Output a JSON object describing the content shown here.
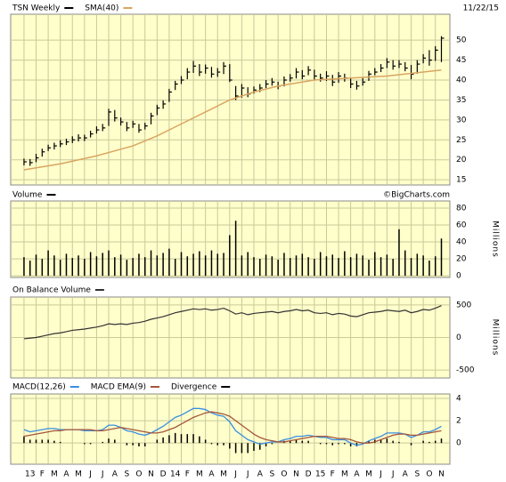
{
  "chart_data": [
    {
      "type": "ohlc",
      "title": "TSN Weekly",
      "date_label": "11/22/15",
      "color": "#000000",
      "grid": true,
      "x": [
        0,
        0.5,
        1,
        1.5,
        2,
        2.5,
        3,
        3.5,
        4,
        4.5,
        5,
        5.5,
        6,
        6.5,
        7,
        7.5,
        8,
        8.5,
        9,
        9.5,
        10,
        10.5,
        11,
        11.5,
        12,
        12.5,
        13,
        13.5,
        14,
        14.5,
        15,
        15.5,
        16,
        16.5,
        17,
        17.5,
        18,
        18.5,
        19,
        19.5,
        20,
        20.5,
        21,
        21.5,
        22,
        22.5,
        23,
        23.5,
        24,
        24.5,
        25,
        25.5,
        26,
        26.5,
        27,
        27.5,
        28,
        28.5,
        29,
        29.5,
        30,
        30.5,
        31,
        31.5,
        32,
        32.5,
        33,
        33.5,
        34,
        34.5
      ],
      "high": [
        20.3,
        20.2,
        21.5,
        22.8,
        23.8,
        24.3,
        24.9,
        25.3,
        25.9,
        26.4,
        26.3,
        27.3,
        28.4,
        29,
        32.8,
        32.5,
        30.6,
        29.5,
        29.8,
        29,
        29.3,
        31.8,
        33.8,
        34.9,
        37.8,
        39.8,
        41,
        43,
        44.8,
        44,
        43.9,
        43.3,
        43,
        44.5,
        44,
        38.5,
        39,
        38.2,
        38.4,
        39,
        40,
        40.5,
        39.6,
        40.9,
        41.5,
        43,
        42.5,
        43.5,
        42.6,
        41.6,
        42.2,
        41.3,
        42,
        41.6,
        40.6,
        39.8,
        40.5,
        42.3,
        43,
        44,
        45.5,
        45,
        45,
        44.5,
        43.8,
        45,
        46.5,
        47.5,
        48.5,
        51
      ],
      "low": [
        18.6,
        18.5,
        19.4,
        20.8,
        22.2,
        22.6,
        23.2,
        23.7,
        24.2,
        24.6,
        24.7,
        25.6,
        26.6,
        27.2,
        28.5,
        29.6,
        28.6,
        27.2,
        28,
        26.8,
        27.6,
        28.9,
        31.2,
        32.8,
        34.5,
        37.5,
        39,
        40.2,
        41.8,
        41,
        41.6,
        40.6,
        40.8,
        41.5,
        39.5,
        35,
        35.6,
        35.7,
        36.6,
        37,
        38,
        38.6,
        37.7,
        38.4,
        39.6,
        40.4,
        40.2,
        41.2,
        40,
        39.6,
        39.8,
        38.5,
        39.3,
        39.6,
        38,
        37.6,
        38.6,
        39.8,
        41.2,
        42,
        43,
        42.6,
        43,
        42.2,
        40.2,
        41.6,
        44.2,
        43.6,
        44.8,
        44.5
      ],
      "close": [
        19.5,
        19.3,
        20.5,
        22,
        23,
        23.5,
        24,
        24.5,
        25,
        25.5,
        25.5,
        26.5,
        27.5,
        28,
        32,
        30.5,
        29.5,
        28,
        29,
        27.5,
        28.5,
        31,
        33,
        34,
        37,
        39,
        40,
        42,
        43.5,
        42,
        43,
        41.5,
        42,
        43.5,
        40,
        36,
        38,
        36.5,
        37.5,
        38,
        39,
        39.5,
        38.5,
        40,
        40.5,
        42,
        41,
        42.5,
        41,
        40.5,
        41,
        39.5,
        41,
        40.5,
        39,
        38.5,
        39.5,
        41.5,
        42,
        43,
        44.5,
        43.5,
        44,
        43,
        41.5,
        44,
        45.5,
        45,
        47.5,
        50.5
      ],
      "sma": {
        "name": "SMA(40)",
        "color": "#d9a560",
        "x": [
          0,
          3,
          6,
          9,
          11,
          13,
          15,
          17,
          19,
          21,
          24,
          27,
          30,
          34.5
        ],
        "values": [
          17.5,
          19,
          21,
          23.5,
          26,
          29,
          32,
          35,
          37,
          38.5,
          40,
          40.5,
          41,
          42.5
        ]
      },
      "xlim": [
        -1.1,
        35.2
      ],
      "ylim": [
        13.7,
        56.5
      ],
      "yticks": [
        15,
        20,
        25,
        30,
        35,
        40,
        45,
        50
      ]
    },
    {
      "type": "bar",
      "title": "Volume",
      "watermark": "©BigCharts.com",
      "y_label": "Millions",
      "color": "#000000",
      "grid": true,
      "x": [
        0,
        0.5,
        1,
        1.5,
        2,
        2.5,
        3,
        3.5,
        4,
        4.5,
        5,
        5.5,
        6,
        6.5,
        7,
        7.5,
        8,
        8.5,
        9,
        9.5,
        10,
        10.5,
        11,
        11.5,
        12,
        12.5,
        13,
        13.5,
        14,
        14.5,
        15,
        15.5,
        16,
        16.5,
        17,
        17.5,
        18,
        18.5,
        19,
        19.5,
        20,
        20.5,
        21,
        21.5,
        22,
        22.5,
        23,
        23.5,
        24,
        24.5,
        25,
        25.5,
        26,
        26.5,
        27,
        27.5,
        28,
        28.5,
        29,
        29.5,
        30,
        30.5,
        31,
        31.5,
        32,
        32.5,
        33,
        33.5,
        34,
        34.5
      ],
      "values": [
        22,
        18,
        25,
        20,
        30,
        24,
        19,
        26,
        21,
        24,
        20,
        28,
        23,
        27,
        30,
        22,
        25,
        19,
        21,
        26,
        22,
        30,
        24,
        27,
        32,
        20,
        28,
        23,
        26,
        29,
        24,
        30,
        26,
        27,
        48,
        65,
        24,
        28,
        22,
        20,
        25,
        23,
        19,
        27,
        21,
        24,
        26,
        22,
        20,
        28,
        23,
        25,
        21,
        29,
        22,
        26,
        24,
        19,
        28,
        22,
        25,
        20,
        55,
        30,
        21,
        26,
        24,
        18,
        23,
        44
      ],
      "xlim": [
        -1.1,
        35.2
      ],
      "ylim": [
        -2,
        88.4
      ],
      "yticks": [
        0,
        20,
        40,
        60,
        80
      ]
    },
    {
      "type": "line",
      "title": "On Balance Volume",
      "y_label": "Millions",
      "color": "#333333",
      "grid": true,
      "x": [
        0,
        0.5,
        1,
        1.5,
        2,
        2.5,
        3,
        3.5,
        4,
        4.5,
        5,
        5.5,
        6,
        6.5,
        7,
        7.5,
        8,
        8.5,
        9,
        9.5,
        10,
        10.5,
        11,
        11.5,
        12,
        12.5,
        13,
        13.5,
        14,
        14.5,
        15,
        15.5,
        16,
        16.5,
        17,
        17.5,
        18,
        18.5,
        19,
        19.5,
        20,
        20.5,
        21,
        21.5,
        22,
        22.5,
        23,
        23.5,
        24,
        24.5,
        25,
        25.5,
        26,
        26.5,
        27,
        27.5,
        28,
        28.5,
        29,
        29.5,
        30,
        30.5,
        31,
        31.5,
        32,
        32.5,
        33,
        33.5,
        34,
        34.5
      ],
      "values": [
        -20,
        -10,
        0,
        20,
        40,
        60,
        70,
        90,
        110,
        120,
        130,
        145,
        160,
        180,
        210,
        200,
        210,
        200,
        220,
        230,
        250,
        280,
        300,
        320,
        350,
        380,
        400,
        420,
        440,
        430,
        440,
        420,
        430,
        450,
        410,
        360,
        380,
        350,
        370,
        380,
        390,
        400,
        380,
        400,
        410,
        430,
        410,
        420,
        380,
        370,
        380,
        350,
        370,
        360,
        330,
        320,
        350,
        380,
        390,
        400,
        420,
        410,
        400,
        420,
        380,
        400,
        430,
        420,
        450,
        490
      ],
      "xlim": [
        -1.1,
        35.2
      ],
      "ylim": [
        -622,
        622
      ],
      "yticks": [
        500,
        0,
        -500
      ]
    },
    {
      "type": "macd",
      "grid": true,
      "x": [
        0,
        0.5,
        1,
        1.5,
        2,
        2.5,
        3,
        3.5,
        4,
        4.5,
        5,
        5.5,
        6,
        6.5,
        7,
        7.5,
        8,
        8.5,
        9,
        9.5,
        10,
        10.5,
        11,
        11.5,
        12,
        12.5,
        13,
        13.5,
        14,
        14.5,
        15,
        15.5,
        16,
        16.5,
        17,
        17.5,
        18,
        18.5,
        19,
        19.5,
        20,
        20.5,
        21,
        21.5,
        22,
        22.5,
        23,
        23.5,
        24,
        24.5,
        25,
        25.5,
        26,
        26.5,
        27,
        27.5,
        28,
        28.5,
        29,
        29.5,
        30,
        30.5,
        31,
        31.5,
        32,
        32.5,
        33,
        33.5,
        34,
        34.5
      ],
      "series": [
        {
          "name": "MACD(12,26)",
          "color": "#3a8ee0",
          "values": [
            1.2,
            1.0,
            1.1,
            1.2,
            1.3,
            1.3,
            1.2,
            1.2,
            1.2,
            1.2,
            1.1,
            1.1,
            1.1,
            1.2,
            1.6,
            1.6,
            1.4,
            1.1,
            1.0,
            0.8,
            0.7,
            0.9,
            1.2,
            1.5,
            1.9,
            2.3,
            2.5,
            2.8,
            3.1,
            3.1,
            3.0,
            2.7,
            2.5,
            2.4,
            1.9,
            1.1,
            0.7,
            0.3,
            0.1,
            -0.1,
            0.0,
            0.1,
            0.1,
            0.3,
            0.4,
            0.6,
            0.6,
            0.7,
            0.6,
            0.5,
            0.5,
            0.3,
            0.3,
            0.3,
            0.0,
            -0.2,
            -0.1,
            0.2,
            0.4,
            0.6,
            0.9,
            0.9,
            0.9,
            0.8,
            0.5,
            0.7,
            1.0,
            1.0,
            1.2,
            1.5
          ]
        },
        {
          "name": "MACD EMA(9)",
          "color": "#a5553a",
          "values": [
            0.6,
            0.7,
            0.8,
            0.9,
            1.0,
            1.1,
            1.1,
            1.2,
            1.2,
            1.2,
            1.2,
            1.2,
            1.1,
            1.1,
            1.2,
            1.3,
            1.4,
            1.3,
            1.2,
            1.1,
            1.0,
            0.9,
            0.9,
            1.0,
            1.2,
            1.4,
            1.7,
            2.0,
            2.3,
            2.5,
            2.7,
            2.8,
            2.7,
            2.6,
            2.4,
            2.0,
            1.6,
            1.2,
            0.8,
            0.5,
            0.3,
            0.2,
            0.1,
            0.1,
            0.2,
            0.3,
            0.4,
            0.5,
            0.6,
            0.6,
            0.6,
            0.5,
            0.4,
            0.4,
            0.3,
            0.1,
            0.0,
            0.0,
            0.1,
            0.3,
            0.5,
            0.7,
            0.8,
            0.8,
            0.7,
            0.7,
            0.8,
            0.9,
            1.0,
            1.1
          ]
        },
        {
          "name": "Divergence",
          "color": "#000000",
          "values": [
            0.6,
            0.3,
            0.3,
            0.3,
            0.3,
            0.2,
            0.1,
            0,
            0,
            0,
            -0.1,
            -0.1,
            0,
            0.1,
            0.4,
            0.3,
            0,
            -0.2,
            -0.2,
            -0.3,
            -0.3,
            0,
            0.3,
            0.5,
            0.7,
            0.9,
            0.8,
            0.8,
            0.8,
            0.6,
            0.3,
            -0.1,
            -0.2,
            -0.2,
            -0.5,
            -0.9,
            -0.9,
            -0.9,
            -0.7,
            -0.6,
            -0.3,
            -0.1,
            0,
            0.2,
            0.2,
            0.3,
            0.2,
            0.2,
            0,
            -0.1,
            -0.1,
            -0.2,
            -0.1,
            -0.1,
            -0.3,
            -0.3,
            -0.1,
            0.2,
            0.3,
            0.3,
            0.4,
            0.2,
            0.1,
            0,
            -0.2,
            0,
            0.2,
            0.1,
            0.2,
            0.4
          ]
        }
      ],
      "xlim": [
        -1.1,
        35.2
      ],
      "ylim": [
        -1.9,
        4.4
      ],
      "yticks": [
        0,
        2,
        4
      ],
      "xticks": [
        {
          "value": 0,
          "label": "13"
        },
        {
          "value": 1,
          "label": "F"
        },
        {
          "value": 2,
          "label": "M"
        },
        {
          "value": 3,
          "label": "A"
        },
        {
          "value": 4,
          "label": "M"
        },
        {
          "value": 5,
          "label": "J"
        },
        {
          "value": 6,
          "label": "J"
        },
        {
          "value": 7,
          "label": "A"
        },
        {
          "value": 8,
          "label": "S"
        },
        {
          "value": 9,
          "label": "O"
        },
        {
          "value": 10,
          "label": "N"
        },
        {
          "value": 11,
          "label": "D"
        },
        {
          "value": 12,
          "label": "14"
        },
        {
          "value": 13,
          "label": "F"
        },
        {
          "value": 14,
          "label": "M"
        },
        {
          "value": 15,
          "label": "A"
        },
        {
          "value": 16,
          "label": "M"
        },
        {
          "value": 17,
          "label": "J"
        },
        {
          "value": 18,
          "label": "J"
        },
        {
          "value": 19,
          "label": "A"
        },
        {
          "value": 20,
          "label": "S"
        },
        {
          "value": 21,
          "label": "O"
        },
        {
          "value": 22,
          "label": "N"
        },
        {
          "value": 23,
          "label": "D"
        },
        {
          "value": 24,
          "label": "15"
        },
        {
          "value": 25,
          "label": "F"
        },
        {
          "value": 26,
          "label": "M"
        },
        {
          "value": 27,
          "label": "A"
        },
        {
          "value": 28,
          "label": "M"
        },
        {
          "value": 29,
          "label": "J"
        },
        {
          "value": 30,
          "label": "J"
        },
        {
          "value": 31,
          "label": "A"
        },
        {
          "value": 32,
          "label": "S"
        },
        {
          "value": 33,
          "label": "O"
        },
        {
          "value": 34,
          "label": "N"
        }
      ]
    }
  ]
}
